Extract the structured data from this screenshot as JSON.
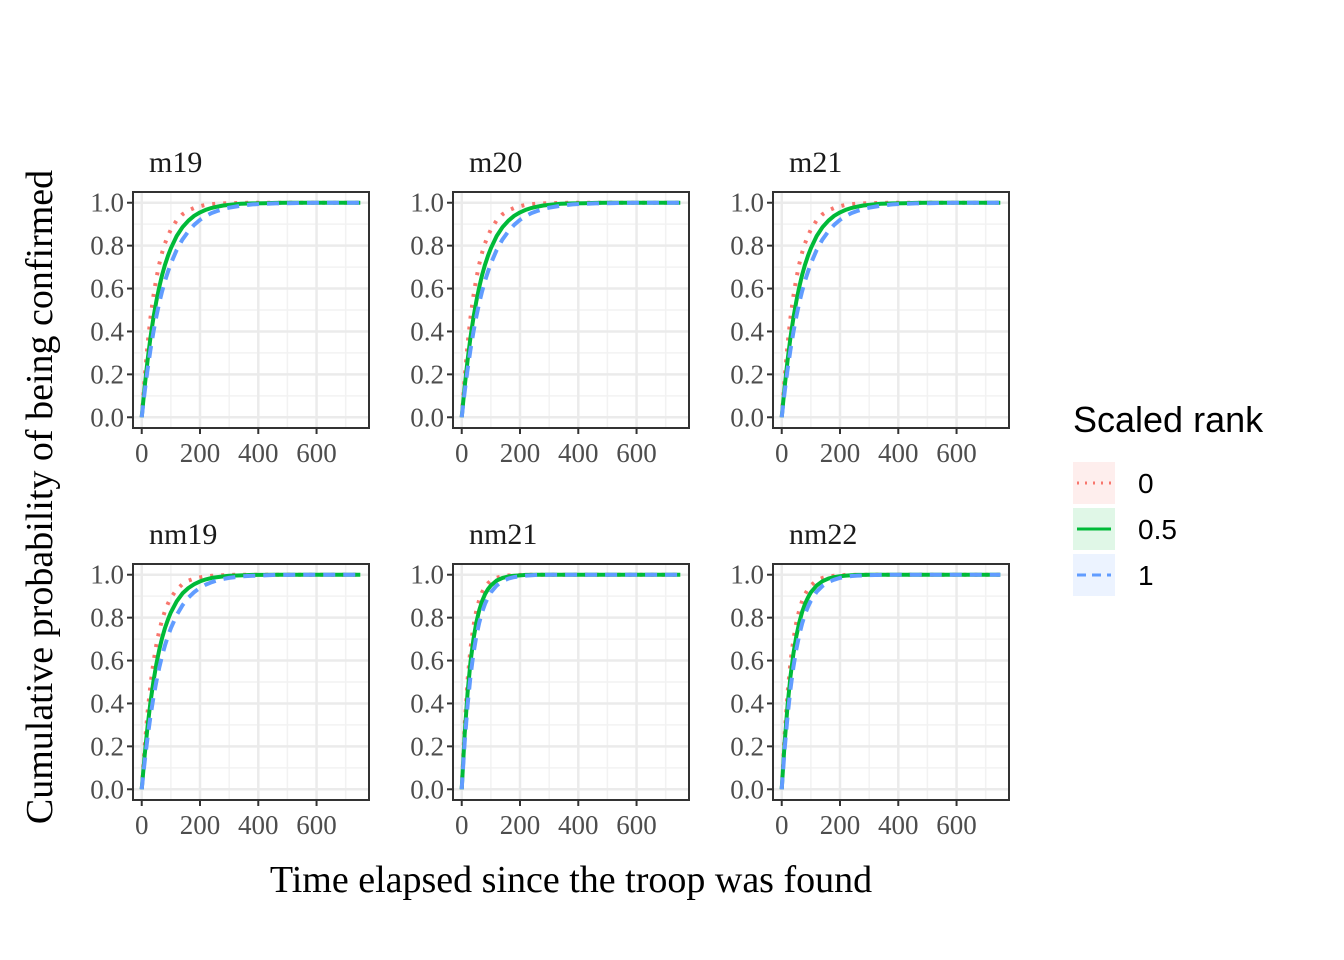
{
  "chart_data": {
    "type": "line",
    "xlabel": "Time elapsed since the troop was found",
    "ylabel": "Cumulative probability of being confirmed",
    "xlim": [
      -30,
      780
    ],
    "ylim": [
      -0.05,
      1.05
    ],
    "xticks": [
      0,
      200,
      400,
      600
    ],
    "xtick_labels": [
      "0",
      "200",
      "400",
      "600"
    ],
    "yticks": [
      0,
      0.2,
      0.4,
      0.6,
      0.8,
      1.0
    ],
    "ytick_labels": [
      "0.0",
      "0.2",
      "0.4",
      "0.6",
      "0.8",
      "1.0"
    ],
    "grid": true,
    "legend": {
      "title": "Scaled rank",
      "placement": "right",
      "entries": [
        {
          "label": "0",
          "color": "#F8766D",
          "style": "dotted"
        },
        {
          "label": "0.5",
          "color": "#00BA38",
          "style": "solid"
        },
        {
          "label": "1",
          "color": "#619CFF",
          "style": "dashed"
        }
      ]
    },
    "x": [
      0,
      10,
      20,
      30,
      40,
      50,
      60,
      70,
      80,
      90,
      100,
      120,
      140,
      160,
      180,
      200,
      220,
      240,
      260,
      280,
      300,
      340,
      380,
      420,
      460,
      500,
      550,
      600,
      650,
      700,
      750
    ],
    "facets": [
      {
        "title": "m19",
        "series": [
          {
            "name": "0",
            "values": [
              0.0,
              0.188,
              0.341,
              0.465,
              0.565,
              0.647,
              0.713,
              0.767,
              0.811,
              0.846,
              0.875,
              0.918,
              0.946,
              0.964,
              0.976,
              0.984,
              0.99,
              0.993,
              0.996,
              0.997,
              0.998,
              0.999,
              1.0,
              1.0,
              1.0,
              1.0,
              1.0,
              1.0,
              1.0,
              1.0,
              1.0
            ]
          },
          {
            "name": "0.5",
            "values": [
              0.0,
              0.144,
              0.267,
              0.373,
              0.463,
              0.54,
              0.606,
              0.663,
              0.711,
              0.753,
              0.788,
              0.845,
              0.886,
              0.916,
              0.939,
              0.955,
              0.967,
              0.976,
              0.982,
              0.987,
              0.99,
              0.995,
              0.997,
              0.998,
              0.999,
              1.0,
              1.0,
              1.0,
              1.0,
              1.0,
              1.0
            ]
          },
          {
            "name": "1",
            "values": [
              0.0,
              0.119,
              0.224,
              0.316,
              0.397,
              0.469,
              0.532,
              0.587,
              0.636,
              0.679,
              0.717,
              0.78,
              0.829,
              0.867,
              0.897,
              0.92,
              0.938,
              0.952,
              0.962,
              0.971,
              0.977,
              0.986,
              0.992,
              0.995,
              0.997,
              0.998,
              0.999,
              1.0,
              1.0,
              1.0,
              1.0
            ]
          }
        ]
      },
      {
        "title": "m20",
        "series": [
          {
            "name": "0",
            "values": [
              0.0,
              0.188,
              0.341,
              0.465,
              0.565,
              0.647,
              0.713,
              0.767,
              0.811,
              0.846,
              0.875,
              0.918,
              0.946,
              0.964,
              0.976,
              0.984,
              0.99,
              0.993,
              0.996,
              0.997,
              0.998,
              0.999,
              1.0,
              1.0,
              1.0,
              1.0,
              1.0,
              1.0,
              1.0,
              1.0,
              1.0
            ]
          },
          {
            "name": "0.5",
            "values": [
              0.0,
              0.144,
              0.267,
              0.373,
              0.463,
              0.54,
              0.606,
              0.663,
              0.711,
              0.753,
              0.788,
              0.845,
              0.886,
              0.916,
              0.939,
              0.955,
              0.967,
              0.976,
              0.982,
              0.987,
              0.99,
              0.995,
              0.997,
              0.998,
              0.999,
              1.0,
              1.0,
              1.0,
              1.0,
              1.0,
              1.0
            ]
          },
          {
            "name": "1",
            "values": [
              0.0,
              0.119,
              0.224,
              0.316,
              0.397,
              0.469,
              0.532,
              0.587,
              0.636,
              0.679,
              0.717,
              0.78,
              0.829,
              0.867,
              0.897,
              0.92,
              0.938,
              0.952,
              0.962,
              0.971,
              0.977,
              0.986,
              0.992,
              0.995,
              0.997,
              0.998,
              0.999,
              1.0,
              1.0,
              1.0,
              1.0
            ]
          }
        ]
      },
      {
        "title": "m21",
        "series": [
          {
            "name": "0",
            "values": [
              0.0,
              0.188,
              0.341,
              0.465,
              0.565,
              0.647,
              0.713,
              0.767,
              0.811,
              0.846,
              0.875,
              0.918,
              0.946,
              0.964,
              0.976,
              0.984,
              0.99,
              0.993,
              0.996,
              0.997,
              0.998,
              0.999,
              1.0,
              1.0,
              1.0,
              1.0,
              1.0,
              1.0,
              1.0,
              1.0,
              1.0
            ]
          },
          {
            "name": "0.5",
            "values": [
              0.0,
              0.144,
              0.267,
              0.373,
              0.463,
              0.54,
              0.606,
              0.663,
              0.711,
              0.753,
              0.788,
              0.845,
              0.886,
              0.916,
              0.939,
              0.955,
              0.967,
              0.976,
              0.982,
              0.987,
              0.99,
              0.995,
              0.997,
              0.998,
              0.999,
              1.0,
              1.0,
              1.0,
              1.0,
              1.0,
              1.0
            ]
          },
          {
            "name": "1",
            "values": [
              0.0,
              0.119,
              0.224,
              0.316,
              0.397,
              0.469,
              0.532,
              0.587,
              0.636,
              0.679,
              0.717,
              0.78,
              0.829,
              0.867,
              0.897,
              0.92,
              0.938,
              0.952,
              0.962,
              0.971,
              0.977,
              0.986,
              0.992,
              0.995,
              0.997,
              0.998,
              0.999,
              1.0,
              1.0,
              1.0,
              1.0
            ]
          }
        ]
      },
      {
        "title": "nm19",
        "series": [
          {
            "name": "0",
            "values": [
              0.0,
              0.2,
              0.36,
              0.488,
              0.59,
              0.672,
              0.738,
              0.79,
              0.832,
              0.866,
              0.893,
              0.931,
              0.956,
              0.972,
              0.982,
              0.988,
              0.992,
              0.995,
              0.997,
              0.998,
              0.999,
              1.0,
              1.0,
              1.0,
              1.0,
              1.0,
              1.0,
              1.0,
              1.0,
              1.0,
              1.0
            ]
          },
          {
            "name": "0.5",
            "values": [
              0.0,
              0.16,
              0.294,
              0.407,
              0.502,
              0.582,
              0.649,
              0.705,
              0.752,
              0.792,
              0.825,
              0.876,
              0.913,
              0.938,
              0.956,
              0.969,
              0.978,
              0.985,
              0.989,
              0.992,
              0.995,
              0.997,
              0.999,
              0.999,
              1.0,
              1.0,
              1.0,
              1.0,
              1.0,
              1.0,
              1.0
            ]
          },
          {
            "name": "1",
            "values": [
              0.0,
              0.13,
              0.243,
              0.341,
              0.427,
              0.501,
              0.566,
              0.622,
              0.671,
              0.714,
              0.751,
              0.812,
              0.858,
              0.893,
              0.919,
              0.939,
              0.954,
              0.965,
              0.974,
              0.98,
              0.985,
              0.992,
              0.995,
              0.997,
              0.999,
              0.999,
              1.0,
              1.0,
              1.0,
              1.0,
              1.0
            ]
          }
        ]
      },
      {
        "title": "nm21",
        "series": [
          {
            "name": "0",
            "values": [
              0.0,
              0.3,
              0.51,
              0.657,
              0.76,
              0.832,
              0.882,
              0.918,
              0.942,
              0.96,
              0.972,
              0.986,
              0.993,
              0.997,
              0.998,
              0.999,
              1.0,
              1.0,
              1.0,
              1.0,
              1.0,
              1.0,
              1.0,
              1.0,
              1.0,
              1.0,
              1.0,
              1.0,
              1.0,
              1.0,
              1.0
            ]
          },
          {
            "name": "0.5",
            "values": [
              0.0,
              0.259,
              0.451,
              0.593,
              0.698,
              0.777,
              0.834,
              0.877,
              0.909,
              0.933,
              0.95,
              0.973,
              0.985,
              0.992,
              0.995,
              0.997,
              0.999,
              0.999,
              1.0,
              1.0,
              1.0,
              1.0,
              1.0,
              1.0,
              1.0,
              1.0,
              1.0,
              1.0,
              1.0,
              1.0,
              1.0
            ]
          },
          {
            "name": "1",
            "values": [
              0.0,
              0.221,
              0.393,
              0.527,
              0.632,
              0.713,
              0.776,
              0.826,
              0.864,
              0.894,
              0.918,
              0.95,
              0.97,
              0.982,
              0.989,
              0.993,
              0.996,
              0.998,
              0.999,
              0.999,
              1.0,
              1.0,
              1.0,
              1.0,
              1.0,
              1.0,
              1.0,
              1.0,
              1.0,
              1.0,
              1.0
            ]
          }
        ]
      },
      {
        "title": "nm22",
        "series": [
          {
            "name": "0",
            "values": [
              0.0,
              0.259,
              0.451,
              0.593,
              0.698,
              0.777,
              0.834,
              0.877,
              0.909,
              0.933,
              0.95,
              0.973,
              0.985,
              0.992,
              0.995,
              0.997,
              0.999,
              0.999,
              1.0,
              1.0,
              1.0,
              1.0,
              1.0,
              1.0,
              1.0,
              1.0,
              1.0,
              1.0,
              1.0,
              1.0,
              1.0
            ]
          },
          {
            "name": "0.5",
            "values": [
              0.0,
              0.221,
              0.393,
              0.527,
              0.632,
              0.713,
              0.776,
              0.826,
              0.864,
              0.894,
              0.918,
              0.95,
              0.97,
              0.982,
              0.989,
              0.993,
              0.996,
              0.998,
              0.999,
              0.999,
              1.0,
              1.0,
              1.0,
              1.0,
              1.0,
              1.0,
              1.0,
              1.0,
              1.0,
              1.0,
              1.0
            ]
          },
          {
            "name": "1",
            "values": [
              0.0,
              0.189,
              0.343,
              0.468,
              0.57,
              0.652,
              0.718,
              0.772,
              0.816,
              0.851,
              0.879,
              0.921,
              0.948,
              0.966,
              0.977,
              0.985,
              0.99,
              0.994,
              0.996,
              0.997,
              0.998,
              0.999,
              1.0,
              1.0,
              1.0,
              1.0,
              1.0,
              1.0,
              1.0,
              1.0,
              1.0
            ]
          }
        ]
      }
    ]
  }
}
